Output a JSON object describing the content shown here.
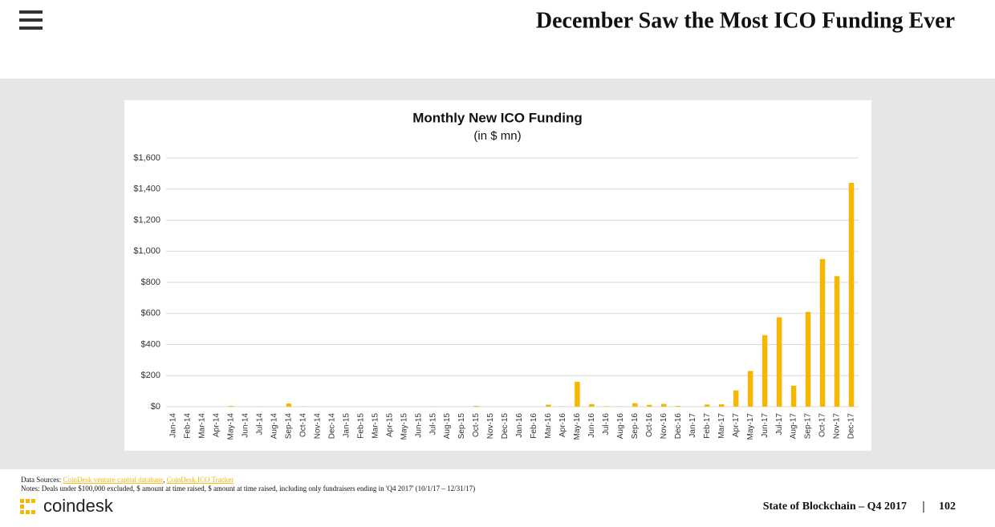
{
  "header": {
    "title": "December Saw the Most ICO Funding Ever"
  },
  "chart_data": {
    "type": "bar",
    "title": "Monthly New ICO Funding",
    "subtitle": "(in $ mn)",
    "categories": [
      "Jan-14",
      "Feb-14",
      "Mar-14",
      "Apr-14",
      "May-14",
      "Jun-14",
      "Jul-14",
      "Aug-14",
      "Sep-14",
      "Oct-14",
      "Nov-14",
      "Dec-14",
      "Jan-15",
      "Feb-15",
      "Mar-15",
      "Apr-15",
      "May-15",
      "Jun-15",
      "Jul-15",
      "Aug-15",
      "Sep-15",
      "Oct-15",
      "Nov-15",
      "Dec-15",
      "Jan-16",
      "Feb-16",
      "Mar-16",
      "Apr-16",
      "May-16",
      "Jun-16",
      "Jul-16",
      "Aug-16",
      "Sep-16",
      "Oct-16",
      "Nov-16",
      "Dec-16",
      "Jan-17",
      "Feb-17",
      "Mar-17",
      "Apr-17",
      "May-17",
      "Jun-17",
      "Jul-17",
      "Aug-17",
      "Sep-17",
      "Oct-17",
      "Nov-17",
      "Dec-17"
    ],
    "values": [
      0,
      0,
      0,
      0,
      5,
      0,
      1,
      0,
      20,
      2,
      0,
      0,
      0,
      0,
      0,
      1,
      1,
      1,
      1,
      1,
      0,
      5,
      0,
      1,
      0,
      0,
      13,
      2,
      160,
      17,
      3,
      2,
      22,
      12,
      18,
      5,
      1,
      14,
      15,
      105,
      230,
      460,
      575,
      135,
      610,
      950,
      840,
      1440
    ],
    "color": "#f5b700",
    "ylim": [
      0,
      1600
    ],
    "yticks": [
      {
        "value": 0,
        "label": "$0"
      },
      {
        "value": 200,
        "label": "$200"
      },
      {
        "value": 400,
        "label": "$400"
      },
      {
        "value": 600,
        "label": "$600"
      },
      {
        "value": 800,
        "label": "$800"
      },
      {
        "value": 1000,
        "label": "$1,000"
      },
      {
        "value": 1200,
        "label": "$1,200"
      },
      {
        "value": 1400,
        "label": "$1,400"
      },
      {
        "value": 1600,
        "label": "$1,600"
      }
    ],
    "grid": true
  },
  "footer": {
    "sources_label": "Data Sources:",
    "sources": [
      "CoinDesk venture capital database",
      "CoinDesk ICO Tracker"
    ],
    "notes": "Notes: Deals under $100,000 excluded, $ amount at time raised, $ amount at time raised, including only fundraisers ending in 'Q4 2017' (10/1/17 – 12/31/17)",
    "brand": "coindesk",
    "report": "State of Blockchain – Q4 2017",
    "page": "102"
  }
}
